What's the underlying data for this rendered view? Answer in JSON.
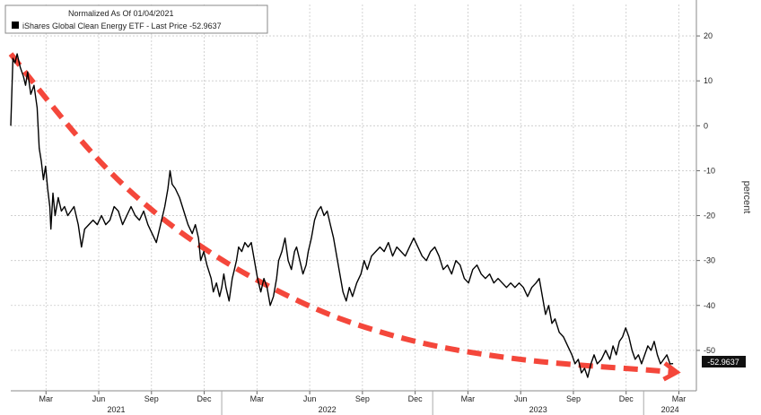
{
  "chart_data": {
    "type": "line",
    "legend": {
      "header": "Normalized As Of 01/04/2021",
      "entry": "iShares Global Clean Energy ETF - Last Price -52.9637",
      "placement": "top-left"
    },
    "ylabel": "percent",
    "ylim": [
      -59,
      27
    ],
    "yticks": [
      20,
      10,
      0,
      -10,
      -20,
      -30,
      -40,
      -50
    ],
    "xlim": [
      2021.0,
      2024.25
    ],
    "x_ticks": [
      {
        "label": "Mar",
        "x": 2021.167
      },
      {
        "label": "Jun",
        "x": 2021.417
      },
      {
        "label": "Sep",
        "x": 2021.667
      },
      {
        "label": "Dec",
        "x": 2021.917
      },
      {
        "label": "Mar",
        "x": 2022.167
      },
      {
        "label": "Jun",
        "x": 2022.417
      },
      {
        "label": "Sep",
        "x": 2022.667
      },
      {
        "label": "Dec",
        "x": 2022.917
      },
      {
        "label": "Mar",
        "x": 2023.167
      },
      {
        "label": "Jun",
        "x": 2023.417
      },
      {
        "label": "Sep",
        "x": 2023.667
      },
      {
        "label": "Dec",
        "x": 2023.917
      },
      {
        "label": "Mar",
        "x": 2024.167
      }
    ],
    "year_labels": [
      {
        "label": "2021",
        "x": 2021.5
      },
      {
        "label": "2022",
        "x": 2022.5
      },
      {
        "label": "2023",
        "x": 2023.5
      },
      {
        "label": "2024",
        "x": 2024.125
      }
    ],
    "year_boundaries": [
      2022.0,
      2023.0,
      2024.0
    ],
    "grid": true,
    "last_value_label": "-52.9637",
    "series": [
      {
        "name": "iShares Global Clean Energy ETF",
        "color": "#000000",
        "points": [
          [
            2021.0,
            0
          ],
          [
            2021.01,
            15
          ],
          [
            2021.02,
            14
          ],
          [
            2021.03,
            16
          ],
          [
            2021.045,
            13
          ],
          [
            2021.06,
            11
          ],
          [
            2021.07,
            9
          ],
          [
            2021.08,
            12
          ],
          [
            2021.095,
            7
          ],
          [
            2021.11,
            9
          ],
          [
            2021.125,
            4
          ],
          [
            2021.135,
            -5
          ],
          [
            2021.145,
            -8
          ],
          [
            2021.155,
            -12
          ],
          [
            2021.165,
            -9
          ],
          [
            2021.175,
            -14
          ],
          [
            2021.185,
            -18
          ],
          [
            2021.19,
            -23
          ],
          [
            2021.2,
            -15
          ],
          [
            2021.21,
            -20
          ],
          [
            2021.225,
            -16
          ],
          [
            2021.24,
            -19
          ],
          [
            2021.255,
            -18
          ],
          [
            2021.27,
            -20
          ],
          [
            2021.285,
            -19
          ],
          [
            2021.3,
            -18
          ],
          [
            2021.32,
            -22
          ],
          [
            2021.335,
            -27
          ],
          [
            2021.35,
            -23
          ],
          [
            2021.37,
            -22
          ],
          [
            2021.39,
            -21
          ],
          [
            2021.41,
            -22
          ],
          [
            2021.43,
            -20
          ],
          [
            2021.45,
            -22
          ],
          [
            2021.47,
            -21
          ],
          [
            2021.49,
            -18
          ],
          [
            2021.51,
            -19
          ],
          [
            2021.53,
            -22
          ],
          [
            2021.55,
            -20
          ],
          [
            2021.57,
            -18
          ],
          [
            2021.59,
            -20
          ],
          [
            2021.61,
            -21
          ],
          [
            2021.63,
            -19
          ],
          [
            2021.65,
            -22
          ],
          [
            2021.67,
            -24
          ],
          [
            2021.69,
            -26
          ],
          [
            2021.71,
            -22
          ],
          [
            2021.73,
            -18
          ],
          [
            2021.745,
            -14
          ],
          [
            2021.755,
            -10
          ],
          [
            2021.765,
            -13
          ],
          [
            2021.78,
            -14
          ],
          [
            2021.8,
            -16
          ],
          [
            2021.82,
            -19
          ],
          [
            2021.84,
            -22
          ],
          [
            2021.86,
            -24
          ],
          [
            2021.875,
            -22
          ],
          [
            2021.89,
            -25
          ],
          [
            2021.9,
            -30
          ],
          [
            2021.915,
            -28
          ],
          [
            2021.93,
            -31
          ],
          [
            2021.95,
            -34
          ],
          [
            2021.96,
            -37
          ],
          [
            2021.975,
            -35
          ],
          [
            2021.99,
            -38
          ],
          [
            2022.0,
            -36
          ],
          [
            2022.01,
            -33
          ],
          [
            2022.02,
            -36
          ],
          [
            2022.035,
            -39
          ],
          [
            2022.05,
            -34
          ],
          [
            2022.06,
            -32
          ],
          [
            2022.07,
            -30
          ],
          [
            2022.08,
            -27
          ],
          [
            2022.095,
            -28
          ],
          [
            2022.11,
            -26
          ],
          [
            2022.125,
            -27
          ],
          [
            2022.14,
            -26
          ],
          [
            2022.155,
            -30
          ],
          [
            2022.17,
            -34
          ],
          [
            2022.185,
            -37
          ],
          [
            2022.2,
            -34
          ],
          [
            2022.215,
            -36
          ],
          [
            2022.23,
            -40
          ],
          [
            2022.245,
            -38
          ],
          [
            2022.26,
            -34
          ],
          [
            2022.27,
            -30
          ],
          [
            2022.285,
            -28
          ],
          [
            2022.3,
            -25
          ],
          [
            2022.315,
            -30
          ],
          [
            2022.33,
            -32
          ],
          [
            2022.345,
            -28
          ],
          [
            2022.355,
            -27
          ],
          [
            2022.37,
            -30
          ],
          [
            2022.385,
            -33
          ],
          [
            2022.4,
            -31
          ],
          [
            2022.41,
            -28
          ],
          [
            2022.425,
            -25
          ],
          [
            2022.44,
            -21
          ],
          [
            2022.455,
            -19
          ],
          [
            2022.47,
            -18
          ],
          [
            2022.485,
            -20
          ],
          [
            2022.5,
            -19
          ],
          [
            2022.515,
            -22
          ],
          [
            2022.53,
            -25
          ],
          [
            2022.545,
            -29
          ],
          [
            2022.56,
            -33
          ],
          [
            2022.575,
            -37
          ],
          [
            2022.59,
            -39
          ],
          [
            2022.605,
            -36
          ],
          [
            2022.62,
            -38
          ],
          [
            2022.64,
            -35
          ],
          [
            2022.66,
            -33
          ],
          [
            2022.675,
            -30
          ],
          [
            2022.69,
            -32
          ],
          [
            2022.71,
            -29
          ],
          [
            2022.73,
            -28
          ],
          [
            2022.75,
            -27
          ],
          [
            2022.77,
            -28
          ],
          [
            2022.79,
            -26
          ],
          [
            2022.81,
            -29
          ],
          [
            2022.83,
            -27
          ],
          [
            2022.85,
            -28
          ],
          [
            2022.87,
            -29
          ],
          [
            2022.89,
            -27
          ],
          [
            2022.91,
            -25
          ],
          [
            2022.93,
            -27
          ],
          [
            2022.95,
            -29
          ],
          [
            2022.97,
            -30
          ],
          [
            2022.99,
            -28
          ],
          [
            2023.01,
            -27
          ],
          [
            2023.03,
            -29
          ],
          [
            2023.05,
            -32
          ],
          [
            2023.07,
            -31
          ],
          [
            2023.09,
            -33
          ],
          [
            2023.11,
            -30
          ],
          [
            2023.13,
            -31
          ],
          [
            2023.15,
            -34
          ],
          [
            2023.17,
            -35
          ],
          [
            2023.19,
            -32
          ],
          [
            2023.21,
            -31
          ],
          [
            2023.23,
            -33
          ],
          [
            2023.25,
            -34
          ],
          [
            2023.27,
            -33
          ],
          [
            2023.29,
            -35
          ],
          [
            2023.31,
            -34
          ],
          [
            2023.33,
            -35
          ],
          [
            2023.35,
            -36
          ],
          [
            2023.37,
            -35
          ],
          [
            2023.39,
            -36
          ],
          [
            2023.41,
            -35
          ],
          [
            2023.43,
            -36
          ],
          [
            2023.45,
            -38
          ],
          [
            2023.47,
            -36
          ],
          [
            2023.49,
            -35
          ],
          [
            2023.505,
            -34
          ],
          [
            2023.52,
            -38
          ],
          [
            2023.535,
            -42
          ],
          [
            2023.55,
            -40
          ],
          [
            2023.565,
            -44
          ],
          [
            2023.58,
            -43
          ],
          [
            2023.6,
            -46
          ],
          [
            2023.62,
            -47
          ],
          [
            2023.64,
            -49
          ],
          [
            2023.66,
            -51
          ],
          [
            2023.675,
            -53
          ],
          [
            2023.69,
            -52
          ],
          [
            2023.705,
            -55
          ],
          [
            2023.72,
            -54
          ],
          [
            2023.735,
            -56
          ],
          [
            2023.75,
            -53
          ],
          [
            2023.765,
            -51
          ],
          [
            2023.78,
            -53
          ],
          [
            2023.8,
            -52
          ],
          [
            2023.82,
            -50
          ],
          [
            2023.84,
            -52
          ],
          [
            2023.855,
            -49
          ],
          [
            2023.87,
            -51
          ],
          [
            2023.885,
            -48
          ],
          [
            2023.9,
            -47
          ],
          [
            2023.915,
            -45
          ],
          [
            2023.93,
            -47
          ],
          [
            2023.945,
            -50
          ],
          [
            2023.96,
            -52
          ],
          [
            2023.975,
            -51
          ],
          [
            2023.99,
            -53
          ],
          [
            2024.005,
            -51
          ],
          [
            2024.02,
            -49
          ],
          [
            2024.035,
            -50
          ],
          [
            2024.05,
            -48
          ],
          [
            2024.065,
            -51
          ],
          [
            2024.08,
            -53
          ],
          [
            2024.095,
            -52
          ],
          [
            2024.11,
            -51
          ],
          [
            2024.125,
            -53
          ],
          [
            2024.14,
            -52.9637
          ]
        ]
      },
      {
        "name": "",
        "style": "dashed-arrow",
        "color": "#f4473b",
        "points": [
          [
            2021.0,
            16
          ],
          [
            2021.25,
            1
          ],
          [
            2021.5,
            -12
          ],
          [
            2021.75,
            -22
          ],
          [
            2022.0,
            -30
          ],
          [
            2022.25,
            -36.5
          ],
          [
            2022.5,
            -42
          ],
          [
            2022.75,
            -46
          ],
          [
            2023.0,
            -49
          ],
          [
            2023.25,
            -51
          ],
          [
            2023.5,
            -52.5
          ],
          [
            2023.75,
            -53.5
          ],
          [
            2024.0,
            -54.3
          ],
          [
            2024.14,
            -54.8
          ]
        ]
      }
    ]
  }
}
